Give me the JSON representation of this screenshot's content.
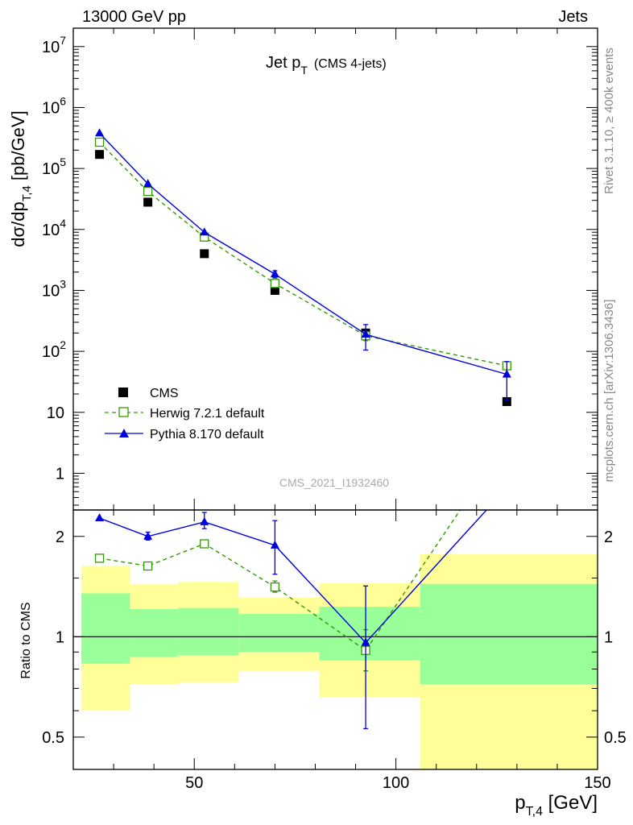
{
  "header": {
    "left": "13000 GeV pp",
    "right": "Jets"
  },
  "side_labels": {
    "rivet": "Rivet 3.1.10, ≥ 400k events",
    "mcplots": "mcplots.cern.ch [arXiv:1306.3436]"
  },
  "watermark": "CMS_2021_I1932460",
  "colors": {
    "cms": "#000000",
    "herwig": "#339900",
    "pythia": "#0000dd",
    "band_outer": "#ffff99",
    "band_inner": "#99ff99"
  },
  "chart_data": [
    {
      "type": "scatter",
      "title_main": "Jet p",
      "title_sub": "T",
      "title_suffix": "(CMS 4-jets)",
      "ylabel": {
        "main": "dσ/dp",
        "sub": "T,4",
        "suffix": " [pb/GeV]"
      },
      "yscale": "log",
      "ylim": [
        0.25,
        20000000
      ],
      "xlim": [
        20,
        150
      ],
      "yticks": [
        {
          "v": 10000000,
          "base": "10",
          "exp": "7"
        },
        {
          "v": 1000000,
          "base": "10",
          "exp": "6"
        },
        {
          "v": 100000,
          "base": "10",
          "exp": "5"
        },
        {
          "v": 10000,
          "base": "10",
          "exp": "4"
        },
        {
          "v": 1000,
          "base": "10",
          "exp": "3"
        },
        {
          "v": 100,
          "base": "10",
          "exp": "2"
        },
        {
          "v": 10,
          "base": "10",
          "exp": ""
        },
        {
          "v": 1,
          "base": "1",
          "exp": ""
        }
      ],
      "legend_position": "bottom-left",
      "series": [
        {
          "name": "CMS",
          "marker": "filled-square",
          "x": [
            26.5,
            38.5,
            52.5,
            70,
            92.5,
            127.5
          ],
          "y": [
            170000,
            28000,
            4000,
            1000,
            200,
            15
          ],
          "yerr_lo": [
            0,
            0,
            0,
            0,
            0,
            1
          ],
          "yerr_hi": [
            0,
            0,
            0,
            0,
            0,
            1
          ]
        },
        {
          "name": "Herwig 7.2.1 default",
          "marker": "open-square",
          "line": "dashed",
          "x": [
            26.5,
            38.5,
            52.5,
            70,
            92.5,
            127.5
          ],
          "y": [
            270000,
            42000,
            7500,
            1300,
            180,
            58
          ],
          "yerr_lo": [
            0,
            0,
            0,
            100,
            30,
            8
          ],
          "yerr_hi": [
            0,
            0,
            0,
            100,
            30,
            8
          ]
        },
        {
          "name": "Pythia 8.170 default",
          "marker": "filled-triangle",
          "line": "solid",
          "x": [
            26.5,
            38.5,
            52.5,
            70,
            92.5,
            127.5
          ],
          "y": [
            380000,
            56000,
            9000,
            1850,
            190,
            42
          ],
          "yerr_lo": [
            0,
            0,
            0,
            250,
            85,
            26
          ],
          "yerr_hi": [
            0,
            0,
            0,
            250,
            85,
            26
          ]
        }
      ]
    },
    {
      "type": "line",
      "ylabel": "Ratio to CMS",
      "xlabel": {
        "main": "p",
        "sub": "T,4",
        "suffix": " [GeV]"
      },
      "yscale": "log",
      "ylim": [
        0.4,
        2.4
      ],
      "xlim": [
        20,
        150
      ],
      "xticks": [
        50,
        100,
        150
      ],
      "yticks": [
        0.5,
        1,
        2
      ],
      "reference_line": 1,
      "bands": [
        {
          "x0": 22,
          "x1": 34,
          "outer": [
            0.6,
            1.63
          ],
          "inner": [
            0.83,
            1.35
          ]
        },
        {
          "x0": 34,
          "x1": 46,
          "outer": [
            0.72,
            1.44
          ],
          "inner": [
            0.87,
            1.21
          ]
        },
        {
          "x0": 46,
          "x1": 61,
          "outer": [
            0.73,
            1.46
          ],
          "inner": [
            0.88,
            1.22
          ]
        },
        {
          "x0": 61,
          "x1": 81,
          "outer": [
            0.79,
            1.31
          ],
          "inner": [
            0.9,
            1.17
          ]
        },
        {
          "x0": 81,
          "x1": 106,
          "outer": [
            0.66,
            1.45
          ],
          "inner": [
            0.85,
            1.23
          ]
        },
        {
          "x0": 106,
          "x1": 150,
          "outer": [
            0.3,
            1.77
          ],
          "inner": [
            0.72,
            1.44
          ]
        }
      ],
      "series": [
        {
          "name": "Herwig 7.2.1 default",
          "marker": "open-square",
          "line": "dashed",
          "x": [
            26.5,
            38.5,
            52.5,
            70,
            92.5,
            127.5
          ],
          "y": [
            1.72,
            1.63,
            1.9,
            1.41,
            0.91,
            3.87
          ],
          "yerr_lo": [
            0,
            0,
            0,
            0.05,
            0.12,
            0.4
          ],
          "yerr_hi": [
            0,
            0,
            0,
            0.06,
            0.14,
            0.4
          ]
        },
        {
          "name": "Pythia 8.170 default",
          "marker": "filled-triangle",
          "line": "solid",
          "x": [
            26.5,
            38.5,
            52.5,
            70,
            92.5,
            127.5
          ],
          "y": [
            2.27,
            2.0,
            2.21,
            1.88,
            0.96,
            2.8
          ],
          "yerr_lo": [
            0,
            0.05,
            0.1,
            0.34,
            0.43,
            0.3
          ],
          "yerr_hi": [
            0,
            0.06,
            0.15,
            0.35,
            0.46,
            0.3
          ]
        }
      ]
    }
  ]
}
